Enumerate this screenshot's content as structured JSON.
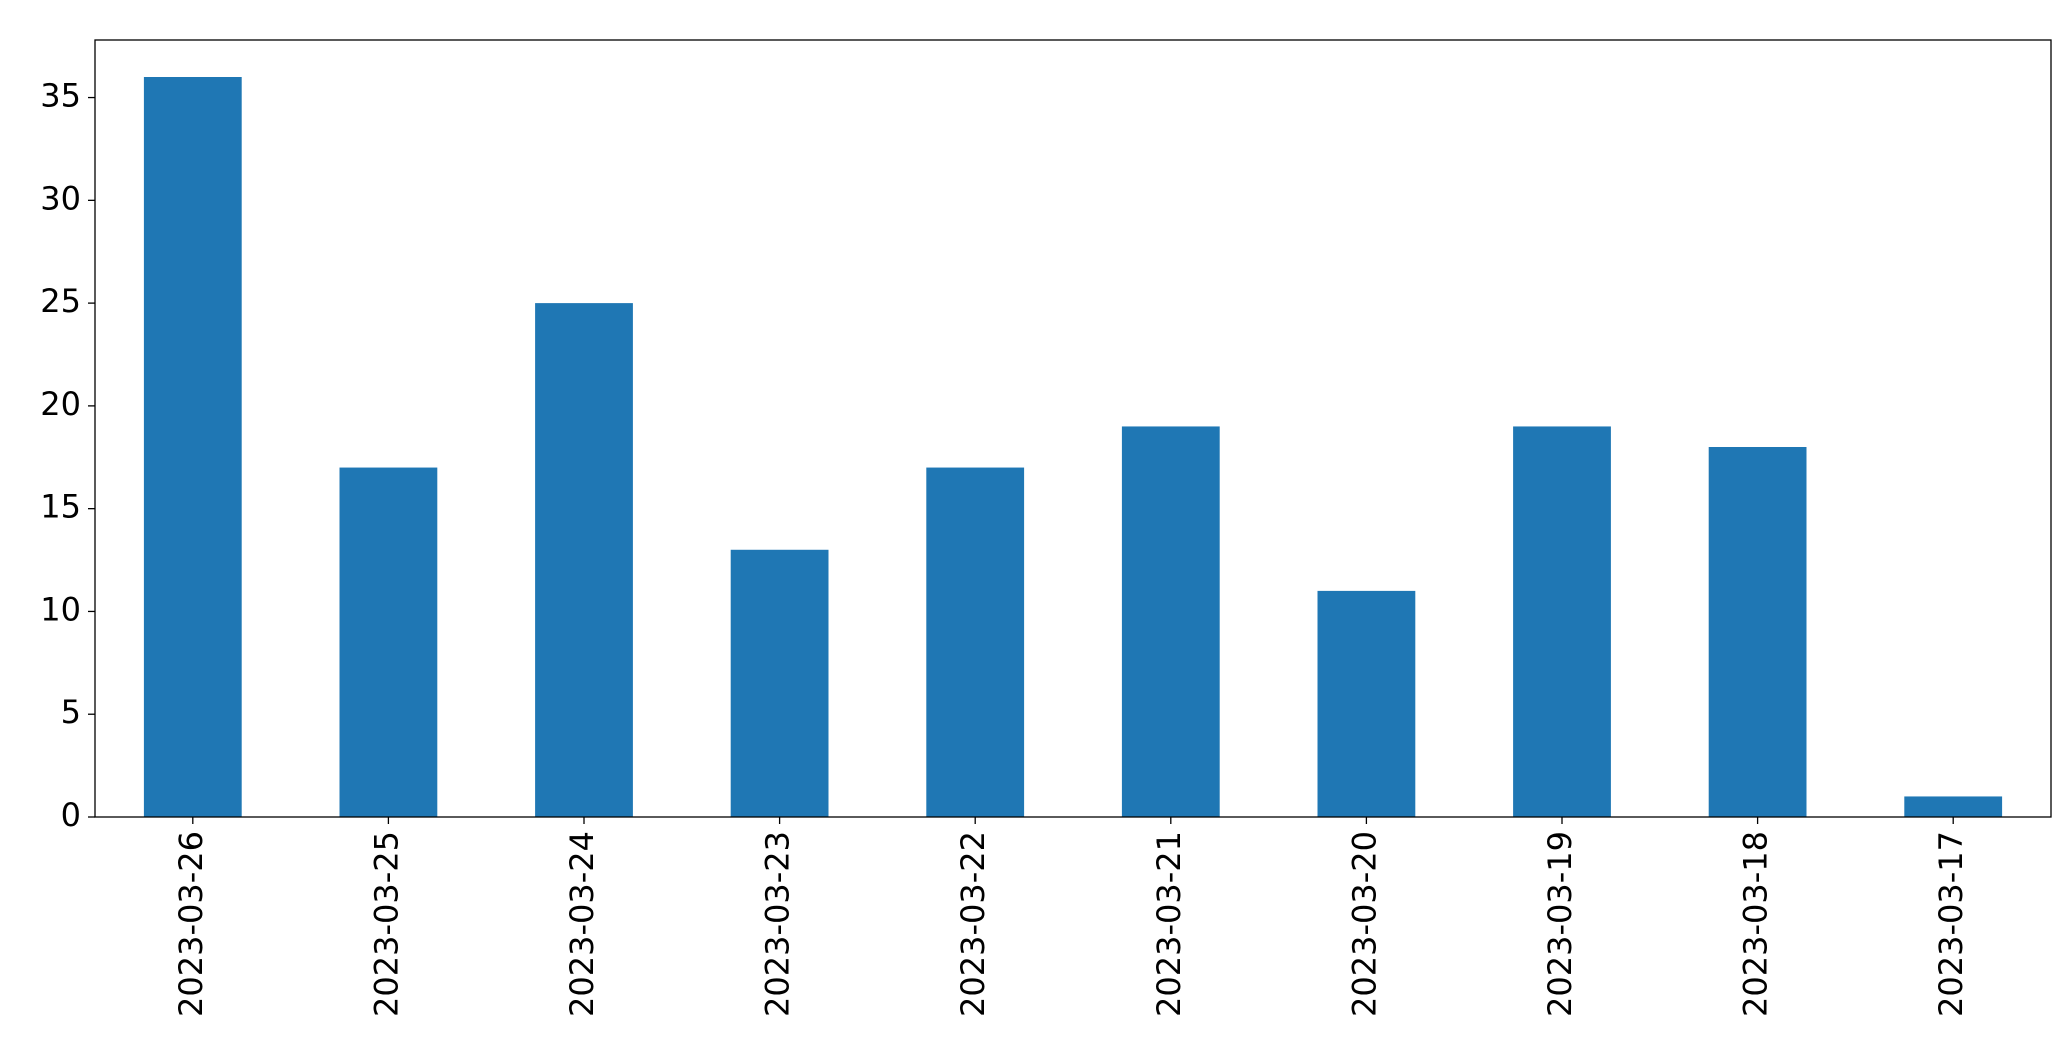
{
  "chart_data": {
    "type": "bar",
    "categories": [
      "2023-03-26",
      "2023-03-25",
      "2023-03-24",
      "2023-03-23",
      "2023-03-22",
      "2023-03-21",
      "2023-03-20",
      "2023-03-19",
      "2023-03-18",
      "2023-03-17"
    ],
    "values": [
      36,
      17,
      25,
      13,
      17,
      19,
      11,
      19,
      18,
      1
    ],
    "color": "#1f77b4",
    "ylim": [
      0,
      37.8
    ],
    "yticks": [
      0,
      5,
      10,
      15,
      20,
      25,
      30,
      35
    ],
    "grid": false
  }
}
